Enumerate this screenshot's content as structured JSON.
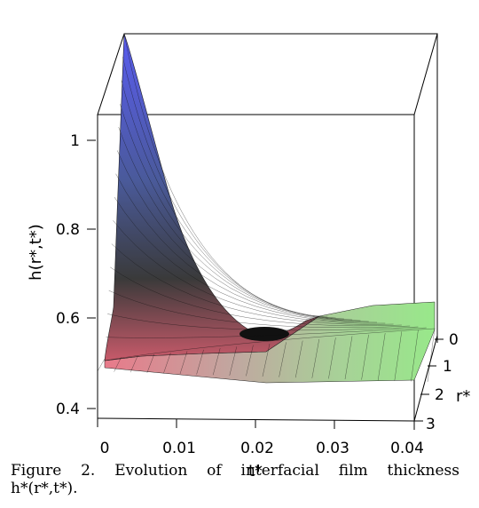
{
  "chart_data": {
    "type": "surface",
    "zlabel": "h(r*,t*)",
    "xlabel": "t*",
    "ylabel": "r*",
    "x_ticks": [
      "0",
      "0.01",
      "0.02",
      "0.03",
      "0.04"
    ],
    "y_ticks": [
      "0",
      "1",
      "2",
      "3"
    ],
    "z_ticks": [
      "1",
      "0.8",
      "0.6",
      "0.4"
    ],
    "xlim": [
      0,
      0.04
    ],
    "ylim": [
      0,
      3
    ],
    "zlim": [
      0.4,
      1.05
    ],
    "surface_points": [
      {
        "t": 0.0,
        "r": 0,
        "h": 1.05
      },
      {
        "t": 0.005,
        "r": 0,
        "h": 0.82
      },
      {
        "t": 0.01,
        "r": 0,
        "h": 0.68
      },
      {
        "t": 0.015,
        "r": 0,
        "h": 0.6
      },
      {
        "t": 0.02,
        "r": 0,
        "h": 0.57
      },
      {
        "t": 0.025,
        "r": 0,
        "h": 0.6
      },
      {
        "t": 0.03,
        "r": 0,
        "h": 0.62
      },
      {
        "t": 0.04,
        "r": 0,
        "h": 0.62
      },
      {
        "t": 0.0,
        "r": 3,
        "h": 0.48
      },
      {
        "t": 0.02,
        "r": 3,
        "h": 0.48
      },
      {
        "t": 0.04,
        "r": 3,
        "h": 0.48
      }
    ],
    "colors": {
      "high": "#4a52e8",
      "mid": "#4a4a4a",
      "low": "#e87a8a",
      "right": "#8ee870"
    }
  },
  "caption": {
    "line1": "Figure 2. Evolution of interfacial film thickness",
    "line2": "h*(r*,t*)."
  }
}
